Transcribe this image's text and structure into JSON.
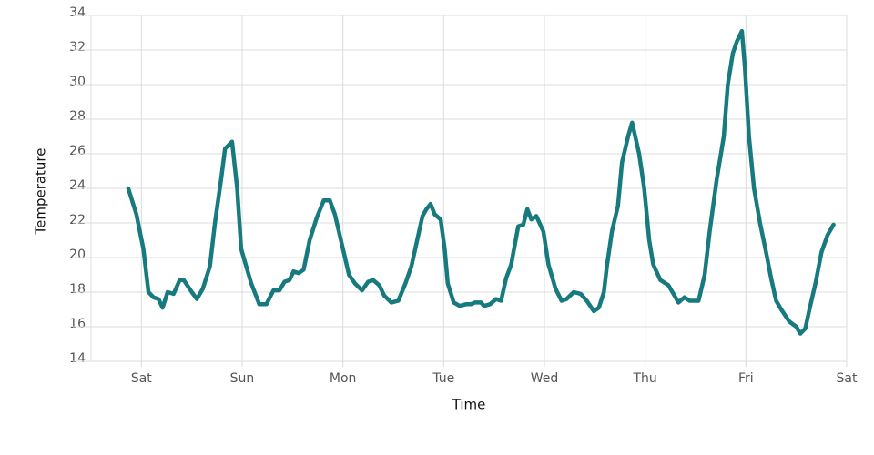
{
  "chart_data": {
    "type": "line",
    "xlabel": "Time",
    "ylabel": "Temperature",
    "color": "#167a7e",
    "grid": true,
    "xlim": [
      -0.5,
      7
    ],
    "xticks": [
      {
        "value": 0,
        "label": "Sat"
      },
      {
        "value": 1,
        "label": "Sun"
      },
      {
        "value": 2,
        "label": "Mon"
      },
      {
        "value": 3,
        "label": "Tue"
      },
      {
        "value": 4,
        "label": "Wed"
      },
      {
        "value": 5,
        "label": "Thu"
      },
      {
        "value": 6,
        "label": "Fri"
      },
      {
        "value": 7,
        "label": "Sat"
      }
    ],
    "ylim": [
      14,
      34
    ],
    "yticks": [
      14,
      16,
      18,
      20,
      22,
      24,
      26,
      28,
      30,
      32,
      34
    ],
    "x": [
      -0.13,
      -0.05,
      0.02,
      0.07,
      0.12,
      0.17,
      0.21,
      0.26,
      0.32,
      0.38,
      0.42,
      0.5,
      0.55,
      0.61,
      0.68,
      0.73,
      0.79,
      0.83,
      0.9,
      0.95,
      0.99,
      1.04,
      1.09,
      1.17,
      1.24,
      1.31,
      1.37,
      1.42,
      1.47,
      1.51,
      1.56,
      1.61,
      1.67,
      1.74,
      1.81,
      1.87,
      1.92,
      2.0,
      2.06,
      2.12,
      2.19,
      2.25,
      2.3,
      2.36,
      2.41,
      2.48,
      2.55,
      2.62,
      2.68,
      2.74,
      2.79,
      2.83,
      2.87,
      2.91,
      2.97,
      3.01,
      3.04,
      3.1,
      3.16,
      3.22,
      3.27,
      3.31,
      3.37,
      3.4,
      3.46,
      3.52,
      3.57,
      3.62,
      3.67,
      3.74,
      3.79,
      3.83,
      3.87,
      3.92,
      3.99,
      4.04,
      4.11,
      4.17,
      4.22,
      4.29,
      4.36,
      4.42,
      4.49,
      4.54,
      4.59,
      4.62,
      4.67,
      4.73,
      4.77,
      4.83,
      4.87,
      4.94,
      4.99,
      5.04,
      5.08,
      5.15,
      5.23,
      5.28,
      5.33,
      5.39,
      5.44,
      5.53,
      5.59,
      5.64,
      5.71,
      5.78,
      5.82,
      5.87,
      5.91,
      5.96,
      5.99,
      6.03,
      6.08,
      6.14,
      6.2,
      6.25,
      6.3,
      6.35,
      6.43,
      6.5,
      6.54,
      6.59,
      6.63,
      6.69,
      6.75,
      6.81,
      6.87
    ],
    "values": [
      24,
      22.5,
      20.5,
      18,
      17.7,
      17.6,
      17.1,
      18,
      17.9,
      18.7,
      18.7,
      18,
      17.6,
      18.2,
      19.5,
      22,
      24.5,
      26.3,
      26.7,
      24,
      20.5,
      19.5,
      18.5,
      17.3,
      17.3,
      18.1,
      18.1,
      18.6,
      18.7,
      19.2,
      19.1,
      19.3,
      21,
      22.3,
      23.3,
      23.3,
      22.5,
      20.5,
      19,
      18.5,
      18.1,
      18.6,
      18.7,
      18.4,
      17.8,
      17.4,
      17.5,
      18.5,
      19.5,
      21.1,
      22.4,
      22.8,
      23.1,
      22.5,
      22.2,
      20.5,
      18.5,
      17.4,
      17.2,
      17.3,
      17.3,
      17.4,
      17.4,
      17.2,
      17.3,
      17.6,
      17.5,
      18.8,
      19.6,
      21.8,
      21.9,
      22.8,
      22.2,
      22.4,
      21.5,
      19.6,
      18.2,
      17.5,
      17.6,
      18,
      17.9,
      17.5,
      16.9,
      17.1,
      18,
      19.5,
      21.5,
      23,
      25.5,
      27,
      27.8,
      26,
      24,
      21,
      19.6,
      18.7,
      18.4,
      17.9,
      17.4,
      17.7,
      17.5,
      17.5,
      19,
      21.5,
      24.5,
      27,
      30,
      31.8,
      32.5,
      33.1,
      31,
      27,
      24,
      22,
      20.3,
      18.8,
      17.5,
      17,
      16.3,
      16,
      15.6,
      15.9,
      17,
      18.5,
      20.3,
      21.3,
      21.9
    ]
  }
}
